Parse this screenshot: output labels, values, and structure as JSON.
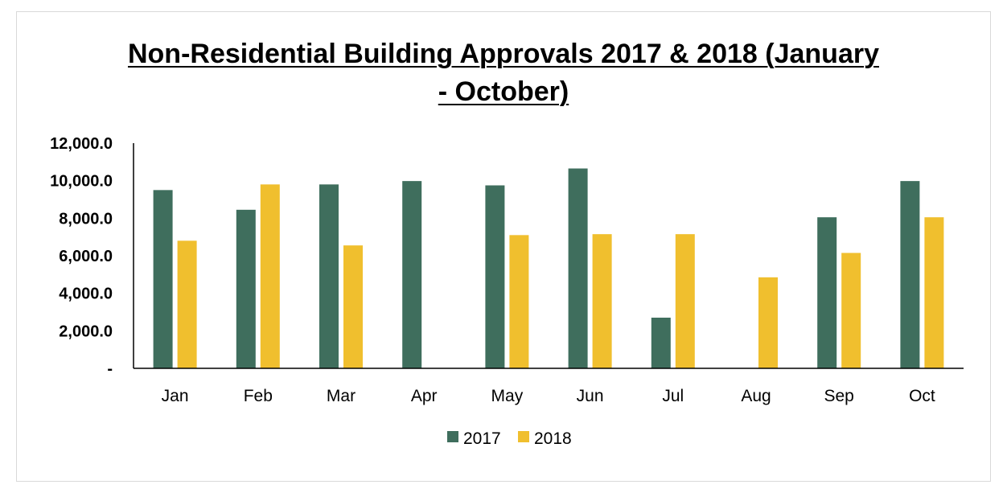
{
  "chart_data": {
    "type": "bar",
    "title": "Non-Residential Building Approvals 2017 & 2018 (January - October)",
    "title_lines": [
      "Non-Residential Building Approvals 2017 & 2018 (January",
      "- October)"
    ],
    "categories": [
      "Jan",
      "Feb",
      "Mar",
      "Apr",
      "May",
      "Jun",
      "Jul",
      "Aug",
      "Sep",
      "Oct"
    ],
    "series": [
      {
        "name": "2017",
        "color": "#3f6e5d",
        "values": [
          9500,
          8450,
          9800,
          9980,
          9750,
          10650,
          2700,
          0,
          8050,
          9980
        ]
      },
      {
        "name": "2018",
        "color": "#f0bf2e",
        "values": [
          6800,
          9800,
          6550,
          0,
          7100,
          7150,
          7150,
          4850,
          6150,
          8050
        ]
      }
    ],
    "ylim": [
      0,
      12000
    ],
    "yticks": [
      0,
      2000,
      4000,
      6000,
      8000,
      10000,
      12000
    ],
    "ytick_labels": [
      "-",
      "2,000.0",
      "4,000.0",
      "6,000.0",
      "8,000.0",
      "10,000.0",
      "12,000.0"
    ],
    "xlabel": "",
    "ylabel": "",
    "grid": false,
    "legend_position": "bottom"
  }
}
